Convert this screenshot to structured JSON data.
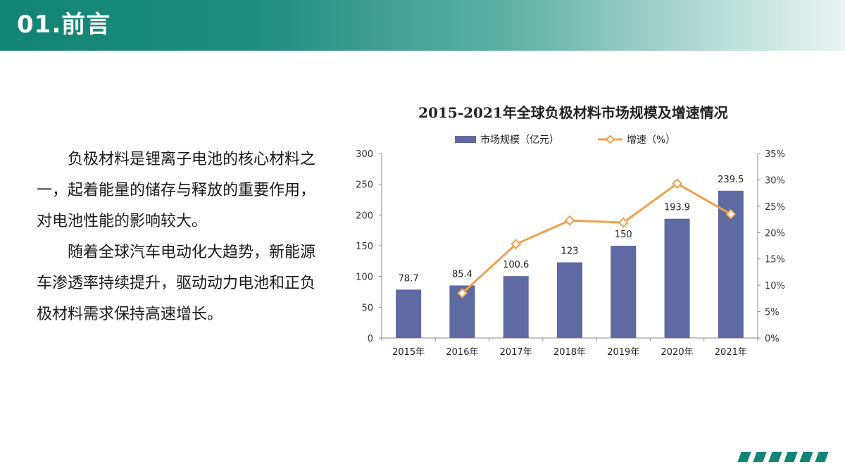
{
  "header": {
    "title": "01.前言"
  },
  "intro": {
    "paragraphs": [
      "负极材料是锂离子电池的核心材料之一，起着能量的储存与释放的重要作用，对电池性能的影响较大。",
      "随着全球汽车电动化大趋势，新能源车渗透率持续提升，驱动动力电池和正负极材料需求保持高速增长。"
    ]
  },
  "colors": {
    "header_start": "#128474",
    "bar": "#5e6aa1",
    "line": "#f0a04b",
    "accent": "#128474"
  },
  "chart_data": {
    "type": "bar",
    "title": "2015-2021年全球负极材料市场规模及增速情况",
    "categories": [
      "2015年",
      "2016年",
      "2017年",
      "2018年",
      "2019年",
      "2020年",
      "2021年"
    ],
    "series": [
      {
        "name": "市场规模（亿元）",
        "type": "bar",
        "axis": "left",
        "values": [
          78.7,
          85.4,
          100.6,
          123,
          150,
          193.9,
          239.5
        ],
        "labels": [
          "78.7",
          "85.4",
          "100.6",
          "123",
          "150",
          "193.9",
          "239.5"
        ]
      },
      {
        "name": "增速（%）",
        "type": "line",
        "axis": "right",
        "values": [
          null,
          8.5,
          17.8,
          22.3,
          21.9,
          29.3,
          23.5
        ]
      }
    ],
    "y_left": {
      "min": 0,
      "max": 300,
      "ticks": [
        "0",
        "50",
        "100",
        "150",
        "200",
        "250",
        "300"
      ]
    },
    "y_right": {
      "min": 0,
      "max": 35,
      "ticks": [
        "0%",
        "5%",
        "10%",
        "15%",
        "20%",
        "25%",
        "30%",
        "35%"
      ]
    },
    "legend": "top-center",
    "grid": false
  }
}
